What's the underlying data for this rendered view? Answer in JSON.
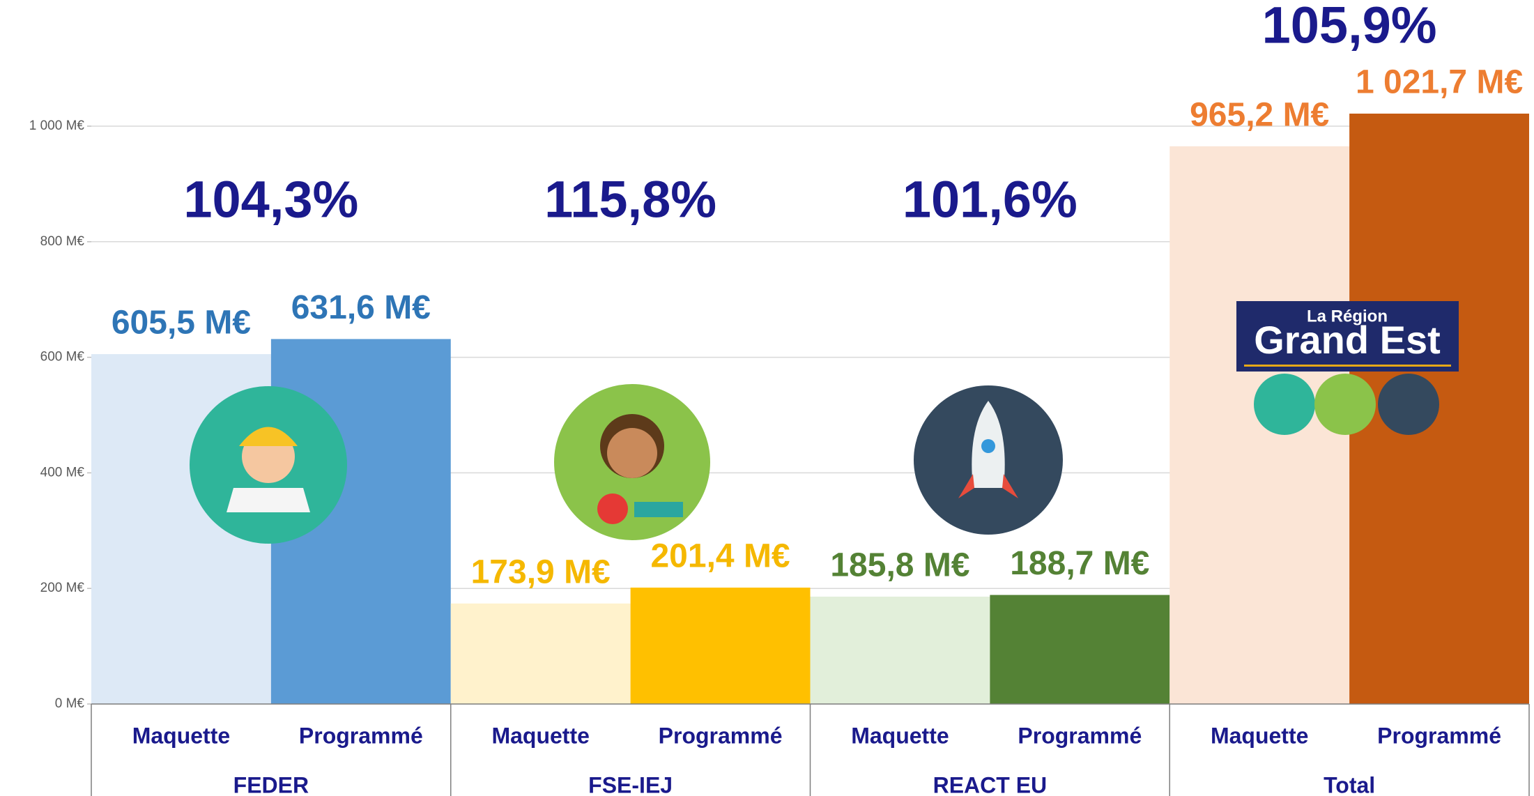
{
  "chart_data": {
    "type": "grouped-bar",
    "bar_labels": [
      "Maquette",
      "Programmé"
    ],
    "groups": [
      {
        "name": "FEDER",
        "ratio_label": "104,3%",
        "values": [
          605.5,
          631.6
        ],
        "value_labels": [
          "605,5 M€",
          "631,6 M€"
        ],
        "colors": [
          "#dde9f6",
          "#5b9bd5"
        ],
        "label_color": "#2e75b6"
      },
      {
        "name": "FSE-IEJ",
        "ratio_label": "115,8%",
        "values": [
          173.9,
          201.4
        ],
        "value_labels": [
          "173,9 M€",
          "201,4 M€"
        ],
        "colors": [
          "#fff2cc",
          "#ffc000"
        ],
        "label_color": "#f5b800"
      },
      {
        "name": "REACT EU",
        "ratio_label": "101,6%",
        "values": [
          185.8,
          188.7
        ],
        "value_labels": [
          "185,8 M€",
          "188,7 M€"
        ],
        "colors": [
          "#e2efda",
          "#548235"
        ],
        "label_color": "#548235"
      },
      {
        "name": "Total",
        "ratio_label": "105,9%",
        "values": [
          965.2,
          1021.7
        ],
        "value_labels": [
          "965,2 M€",
          "1 021,7 M€"
        ],
        "colors": [
          "#fbe5d6",
          "#c55a11"
        ],
        "label_color": "#ed7d31"
      }
    ],
    "ylim": [
      0,
      1000
    ],
    "yticks": [
      {
        "value": 0,
        "label": "0 M€"
      },
      {
        "value": 200,
        "label": "200 M€"
      },
      {
        "value": 400,
        "label": "400 M€"
      },
      {
        "value": 600,
        "label": "600 M€"
      },
      {
        "value": 800,
        "label": "800 M€"
      },
      {
        "value": 1000,
        "label": "1 000 M€"
      }
    ],
    "grid": true,
    "logo": {
      "line1": "La Région",
      "line2": "Grand Est"
    }
  }
}
